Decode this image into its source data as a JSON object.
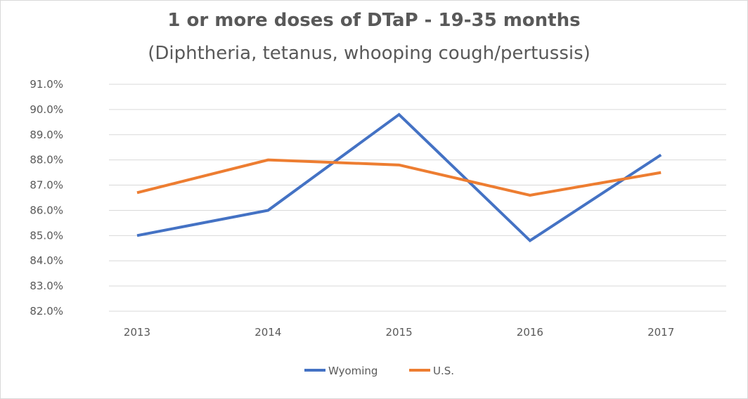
{
  "chart_data": {
    "type": "line",
    "title": "1 or more doses of DTaP - 19-35 months",
    "subtitle": "(Diphtheria, tetanus, whooping cough/pertussis)",
    "xlabel": "",
    "ylabel": "",
    "categories": [
      "2013",
      "2014",
      "2015",
      "2016",
      "2017"
    ],
    "ylim": [
      82.0,
      91.0
    ],
    "yticks": [
      "82.0%",
      "83.0%",
      "84.0%",
      "85.0%",
      "86.0%",
      "87.0%",
      "88.0%",
      "89.0%",
      "90.0%",
      "91.0%"
    ],
    "grid": true,
    "legend_position": "bottom",
    "series": [
      {
        "name": "Wyoming",
        "color": "#4472c4",
        "values": [
          85.0,
          86.0,
          89.8,
          84.8,
          88.2
        ]
      },
      {
        "name": "U.S.",
        "color": "#ed7d31",
        "values": [
          86.7,
          88.0,
          87.8,
          86.6,
          87.5
        ]
      }
    ]
  }
}
